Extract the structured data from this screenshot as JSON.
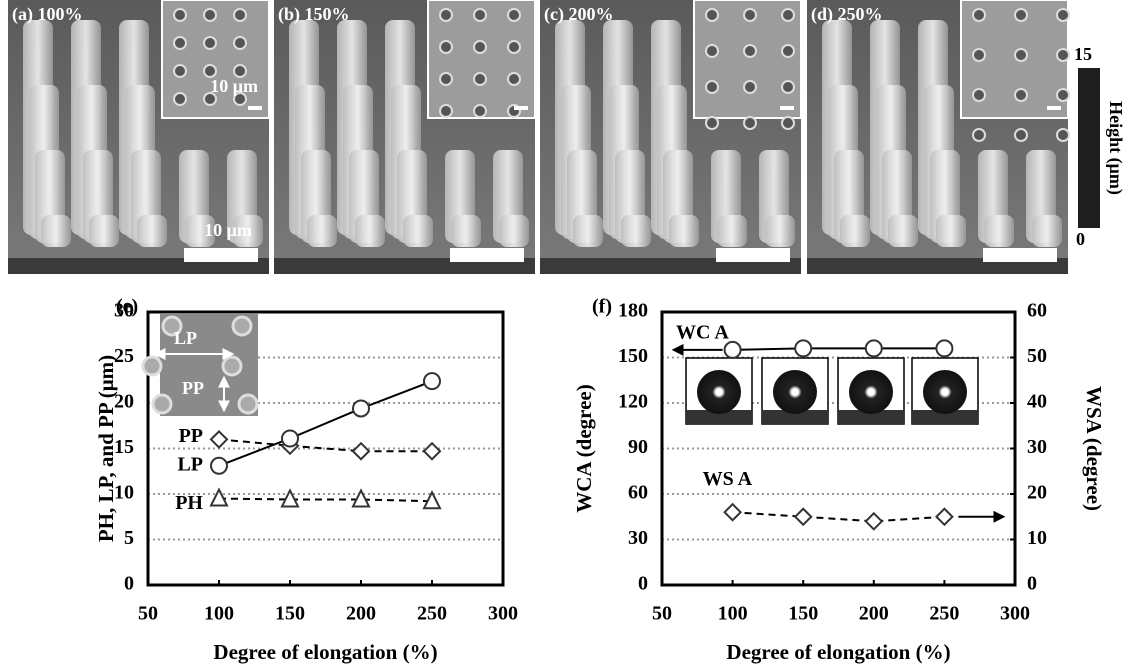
{
  "panels": [
    {
      "label": "(a) 100%",
      "inset_scale": "10 μm",
      "scale": "10 μm"
    },
    {
      "label": "(b) 150%"
    },
    {
      "label": "(c) 200%"
    },
    {
      "label": "(d) 250%"
    }
  ],
  "colorbar": {
    "max": "15",
    "min": "0",
    "label": "Height (μm)"
  },
  "chart_data": [
    {
      "type": "line",
      "panel_label": "(e)",
      "x_label": "Degree of elongation (%)",
      "y_label": "PH, LP, and PP (μm)",
      "inset_labels": [
        "LP",
        "PP"
      ],
      "x": [
        100,
        150,
        200,
        250
      ],
      "series": [
        {
          "name": "PP",
          "color": "#000000",
          "marker": "diamond",
          "dashed": true,
          "values": [
            16.0,
            15.3,
            14.7,
            14.7
          ]
        },
        {
          "name": "LP",
          "color": "#000000",
          "marker": "circle",
          "dashed": false,
          "values": [
            13.1,
            16.1,
            19.4,
            22.4
          ]
        },
        {
          "name": "PH",
          "color": "#000000",
          "marker": "triangle",
          "dashed": true,
          "values": [
            9.5,
            9.4,
            9.4,
            9.2
          ]
        }
      ],
      "xlim": [
        50,
        300
      ],
      "xticks": [
        50,
        100,
        150,
        200,
        250,
        300
      ],
      "ylim": [
        0,
        30
      ],
      "yticks": [
        0,
        5,
        10,
        15,
        20,
        25,
        30
      ],
      "grid": true
    },
    {
      "type": "line",
      "panel_label": "(f)",
      "x_label": "Degree of elongation (%)",
      "y_label": "WCA (degree)",
      "y2_label": "WSA (degree)",
      "x": [
        100,
        150,
        200,
        250
      ],
      "series": [
        {
          "name": "WC A",
          "color": "#000000",
          "marker": "circle",
          "dashed": false,
          "values": [
            155,
            156,
            156,
            156
          ]
        },
        {
          "name": "WS A",
          "color": "#000000",
          "marker": "diamond",
          "dashed": true,
          "axis": "y2",
          "values": [
            16,
            15,
            14,
            15
          ]
        }
      ],
      "xlim": [
        50,
        300
      ],
      "xticks": [
        50,
        100,
        150,
        200,
        250,
        300
      ],
      "ylim": [
        0,
        180
      ],
      "yticks": [
        0,
        30,
        60,
        90,
        120,
        150,
        180
      ],
      "y2lim": [
        0,
        60
      ],
      "y2ticks": [
        0,
        10,
        20,
        30,
        40,
        50,
        60
      ],
      "grid": true
    }
  ]
}
